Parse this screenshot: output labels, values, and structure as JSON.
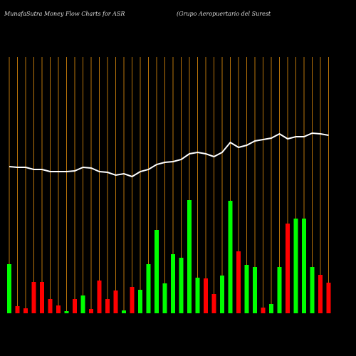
{
  "chart_data": {
    "type": "bar",
    "title": "MunafaSutra  Money Flow  Charts for ASR",
    "subtitle": "(Grupo  Aeropuertario  del Surest",
    "values": [
      69,
      10,
      7,
      44,
      44,
      20,
      11,
      3,
      20,
      25,
      6,
      46,
      20,
      32,
      4,
      37,
      33,
      69,
      117,
      42,
      83,
      78,
      159,
      50,
      49,
      27,
      53,
      158,
      87,
      68,
      65,
      8,
      13,
      65,
      126,
      133,
      133,
      65,
      54,
      43
    ],
    "colors": [
      "#00ff00",
      "#ff0000",
      "#ff0000",
      "#ff0000",
      "#ff0000",
      "#ff0000",
      "#ff0000",
      "#00ff00",
      "#ff0000",
      "#00ff00",
      "#ff0000",
      "#ff0000",
      "#ff0000",
      "#ff0000",
      "#00ff00",
      "#ff0000",
      "#00ff00",
      "#00ff00",
      "#00ff00",
      "#00ff00",
      "#00ff00",
      "#00ff00",
      "#00ff00",
      "#00ff00",
      "#ff0000",
      "#ff0000",
      "#00ff00",
      "#00ff00",
      "#ff0000",
      "#00ff00",
      "#00ff00",
      "#ff0000",
      "#00ff00",
      "#00ff00",
      "#ff0000",
      "#00ff00",
      "#00ff00",
      "#00ff00",
      "#ff0000",
      "#ff0000"
    ],
    "line": {
      "color": "#ffffff",
      "values": [
        206,
        205,
        205,
        202,
        202,
        199,
        199,
        199,
        200,
        205,
        204,
        199,
        198,
        194,
        196,
        192,
        199,
        202,
        209,
        212,
        213,
        216,
        224,
        226,
        224,
        220,
        226,
        240,
        233,
        236,
        242,
        244,
        246,
        252,
        245,
        248,
        248,
        253,
        252,
        250
      ]
    },
    "ylim": [
      0,
      360
    ],
    "grid": true,
    "grid_color": "#b8730a"
  }
}
